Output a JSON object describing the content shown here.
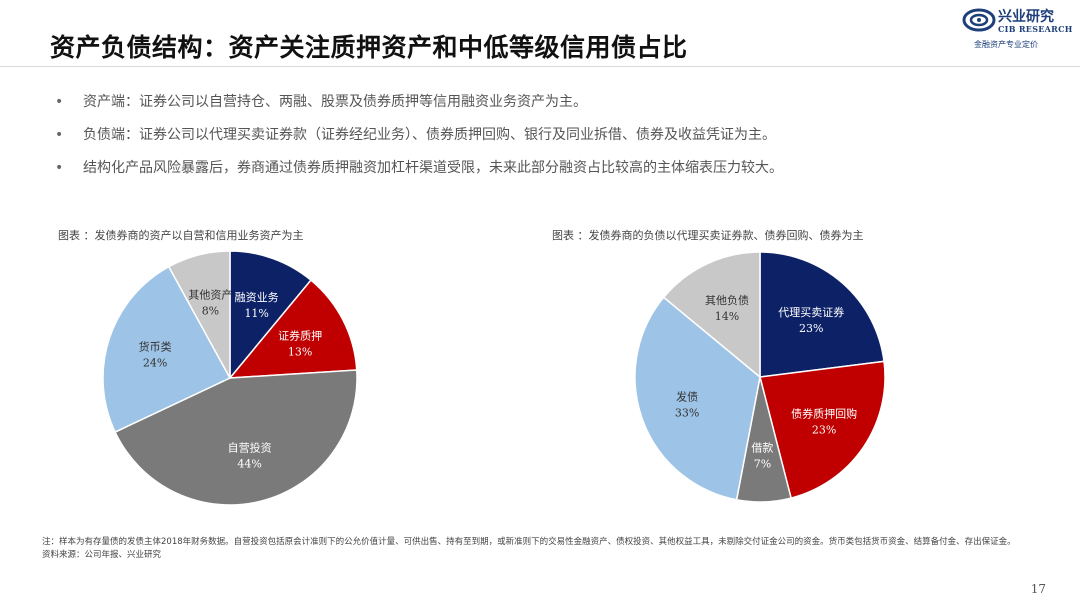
{
  "page": {
    "title": "资产负债结构：资产关注质押资产和中低等级信用债占比",
    "page_number": "17"
  },
  "logo": {
    "name": "兴业研究",
    "en": "CIB RESEARCH",
    "tagline": "金融资产专业定价"
  },
  "bullets": [
    "资产端：证券公司以自营持仓、两融、股票及债券质押等信用融资业务资产为主。",
    "负债端：证券公司以代理买卖证券款（证券经纪业务）、债券质押回购、银行及同业拆借、债券及收益凭证为主。",
    "结构化产品风险暴露后，券商通过债券质押融资加杠杆渠道受限，未来此部分融资占比较高的主体缩表压力较大。"
  ],
  "bullet_marker": "•",
  "colors": {
    "navy": "#0d2266",
    "red": "#c00000",
    "darkgray": "#7a7a7a",
    "lightblue": "#9dc3e6",
    "lightgray": "#c8c8c8"
  },
  "notes": {
    "line1": "注：样本为有存量债的发债主体2018年财务数据。自营投资包括原会计准则下的公允价值计量、可供出售、持有至到期，或新准则下的交易性金融资产、债权投资、其他权益工具，未剔除交付证金公司的资金。货币类包括货币资金、结算备付金、存出保证金。",
    "line2": "资料来源：公司年报、兴业研究"
  },
  "chart_data": [
    {
      "type": "pie",
      "title": "图表 ：发债券商的资产以自营和信用业务资产为主",
      "slices": [
        {
          "label": "融资业务",
          "value": 11,
          "text": "11%",
          "color": "#0d2266",
          "text_color": "#ffffff"
        },
        {
          "label": "证券质押",
          "value": 13,
          "text": "13%",
          "color": "#c00000",
          "text_color": "#ffffff"
        },
        {
          "label": "自营投资",
          "value": 44,
          "text": "44%",
          "color": "#7a7a7a",
          "text_color": "#ffffff"
        },
        {
          "label": "货币类",
          "value": 24,
          "text": "24%",
          "color": "#9dc3e6",
          "text_color": "#333333"
        },
        {
          "label": "其他资产",
          "value": 8,
          "text": "8%",
          "color": "#c8c8c8",
          "text_color": "#333333"
        }
      ]
    },
    {
      "type": "pie",
      "title": "图表 ：发债券商的负债以代理买卖证券款、债券回购、债券为主",
      "slices": [
        {
          "label": "代理买卖证券",
          "value": 23,
          "text": "23%",
          "color": "#0d2266",
          "text_color": "#ffffff"
        },
        {
          "label": "债券质押回购",
          "value": 23,
          "text": "23%",
          "color": "#c00000",
          "text_color": "#ffffff"
        },
        {
          "label": "借款",
          "value": 7,
          "text": "7%",
          "color": "#7a7a7a",
          "text_color": "#ffffff"
        },
        {
          "label": "发债",
          "value": 33,
          "text": "33%",
          "color": "#9dc3e6",
          "text_color": "#333333"
        },
        {
          "label": "其他负债",
          "value": 14,
          "text": "14%",
          "color": "#c8c8c8",
          "text_color": "#333333"
        }
      ]
    }
  ]
}
